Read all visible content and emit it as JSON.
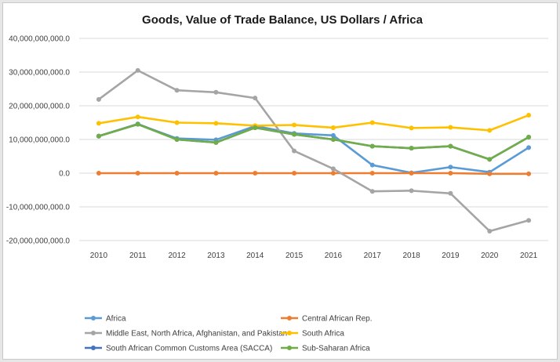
{
  "chart_data": {
    "type": "line",
    "title": "Goods, Value of Trade Balance, US Dollars / Africa",
    "xlabel": "",
    "ylabel": "",
    "categories": [
      "2010",
      "2011",
      "2012",
      "2013",
      "2014",
      "2015",
      "2016",
      "2017",
      "2018",
      "2019",
      "2020",
      "2021"
    ],
    "ylim": [
      -20000000000,
      40000000000
    ],
    "yticks": [
      40000000000,
      30000000000,
      20000000000,
      10000000000,
      0,
      -10000000000,
      -20000000000
    ],
    "ytick_labels": [
      "40,000,000,000.0",
      "30,000,000,000.0",
      "20,000,000,000.0",
      "10,000,000,000.0",
      "0.0",
      "-10,000,000,000.0",
      "-20,000,000,000.0"
    ],
    "grid": true,
    "legend_position": "bottom",
    "series": [
      {
        "name": "Africa",
        "color": "#5b9bd5",
        "values": [
          11000000000,
          14500000000,
          10300000000,
          9900000000,
          14000000000,
          11800000000,
          11200000000,
          2400000000,
          100000000,
          1800000000,
          300000000,
          7600000000
        ]
      },
      {
        "name": "Central African Rep.",
        "color": "#ed7d31",
        "values": [
          0,
          0,
          0,
          0,
          0,
          0,
          0,
          0,
          0,
          0,
          -200000000,
          -200000000
        ]
      },
      {
        "name": "Middle East, North Africa, Afghanistan, and Pakistan",
        "color": "#a5a5a5",
        "values": [
          21900000000,
          30500000000,
          24600000000,
          24000000000,
          22300000000,
          6600000000,
          1300000000,
          -5400000000,
          -5200000000,
          -6000000000,
          -17200000000,
          -14000000000
        ]
      },
      {
        "name": "South Africa",
        "color": "#ffc000",
        "values": [
          14800000000,
          16700000000,
          15000000000,
          14800000000,
          14100000000,
          14300000000,
          13500000000,
          15000000000,
          13400000000,
          13600000000,
          12700000000,
          17200000000
        ]
      },
      {
        "name": "South African Common Customs Area (SACCA)",
        "color": "#4472c4",
        "values": [
          11000000000,
          14600000000,
          10000000000,
          9100000000,
          13500000000,
          11500000000,
          10000000000,
          8000000000,
          7400000000,
          8000000000,
          4100000000,
          10700000000
        ]
      },
      {
        "name": "Sub-Saharan Africa",
        "color": "#70ad47",
        "values": [
          11000000000,
          14500000000,
          10000000000,
          9100000000,
          13500000000,
          11500000000,
          10000000000,
          8000000000,
          7400000000,
          8000000000,
          4100000000,
          10700000000
        ]
      }
    ]
  }
}
